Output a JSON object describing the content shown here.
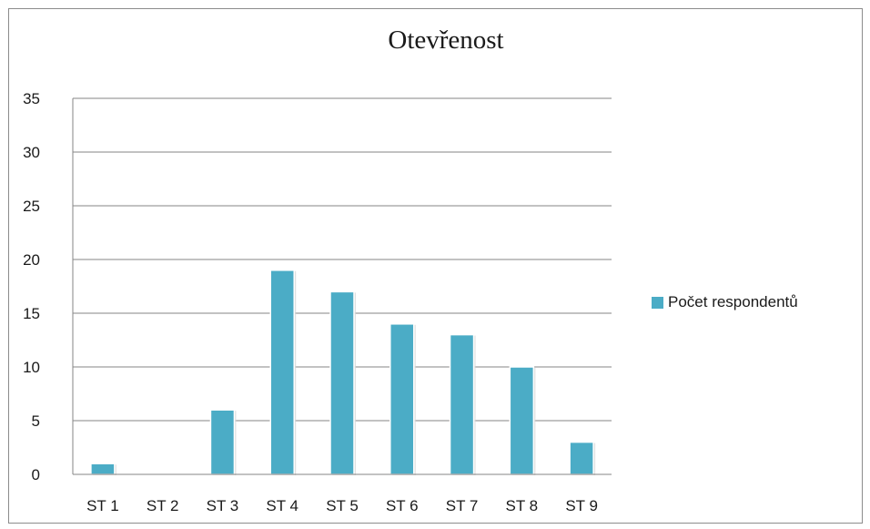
{
  "chart_data": {
    "type": "bar",
    "title": "Otevřenost",
    "xlabel": "",
    "ylabel": "",
    "categories": [
      "ST 1",
      "ST 2",
      "ST 3",
      "ST 4",
      "ST 5",
      "ST 6",
      "ST 7",
      "ST 8",
      "ST 9"
    ],
    "series": [
      {
        "name": "Počet respondentů",
        "color": "#4BACC6",
        "values": [
          1,
          0,
          6,
          19,
          17,
          14,
          13,
          10,
          3
        ]
      }
    ],
    "ylim": [
      0,
      35
    ],
    "yticks": [
      "0",
      "5",
      "10",
      "15",
      "20",
      "25",
      "30",
      "35"
    ],
    "grid": true,
    "legend_position": "right"
  }
}
